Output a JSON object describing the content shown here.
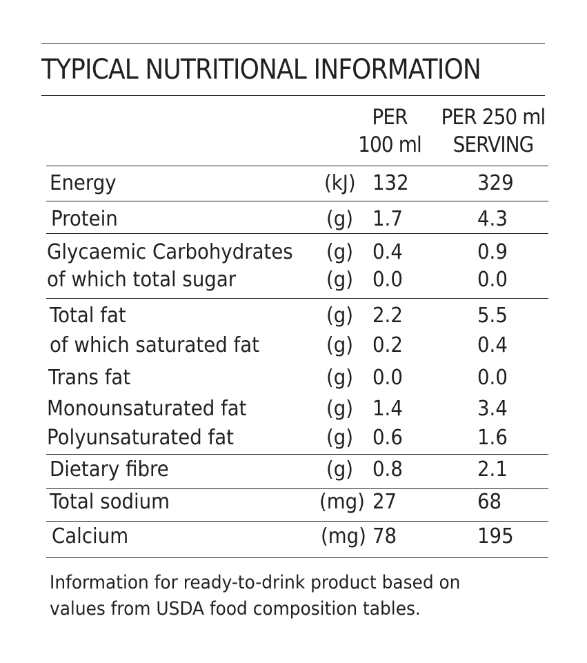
{
  "title": "TYPICAL NUTRITIONAL INFORMATION",
  "headers": {
    "per100": [
      "PER",
      "100 ml"
    ],
    "serving": [
      "PER 250 ml",
      "SERVING"
    ]
  },
  "rows": [
    {
      "label": "Energy",
      "unit": "(kJ)",
      "per100": "132",
      "serving": "329"
    },
    {
      "label": "Protein",
      "unit": "(g)",
      "per100": "1.7",
      "serving": "4.3"
    },
    {
      "label": "Glycaemic Carbohydrates",
      "unit": "(g)",
      "per100": "0.4",
      "serving": "0.9"
    },
    {
      "label": "of which total sugar",
      "unit": "(g)",
      "per100": "0.0",
      "serving": "0.0"
    },
    {
      "label": "Total fat",
      "unit": "(g)",
      "per100": "2.2",
      "serving": "5.5"
    },
    {
      "label": "of which saturated fat",
      "unit": "(g)",
      "per100": "0.2",
      "serving": "0.4"
    },
    {
      "label": "Trans fat",
      "unit": "(g)",
      "per100": "0.0",
      "serving": "0.0"
    },
    {
      "label": "Monounsaturated fat",
      "unit": "(g)",
      "per100": "1.4",
      "serving": "3.4"
    },
    {
      "label": "Polyunsaturated fat",
      "unit": "(g)",
      "per100": "0.6",
      "serving": "1.6"
    },
    {
      "label": "Dietary fibre",
      "unit": "(g)",
      "per100": "0.8",
      "serving": "2.1"
    },
    {
      "label": "Total sodium",
      "unit": "(mg)",
      "per100": "27",
      "serving": "68"
    },
    {
      "label": "Calcium",
      "unit": "(mg)",
      "per100": "78",
      "serving": "195"
    }
  ],
  "footnote": [
    "Information for ready-to-drink product based on",
    "values from USDA food composition tables."
  ]
}
